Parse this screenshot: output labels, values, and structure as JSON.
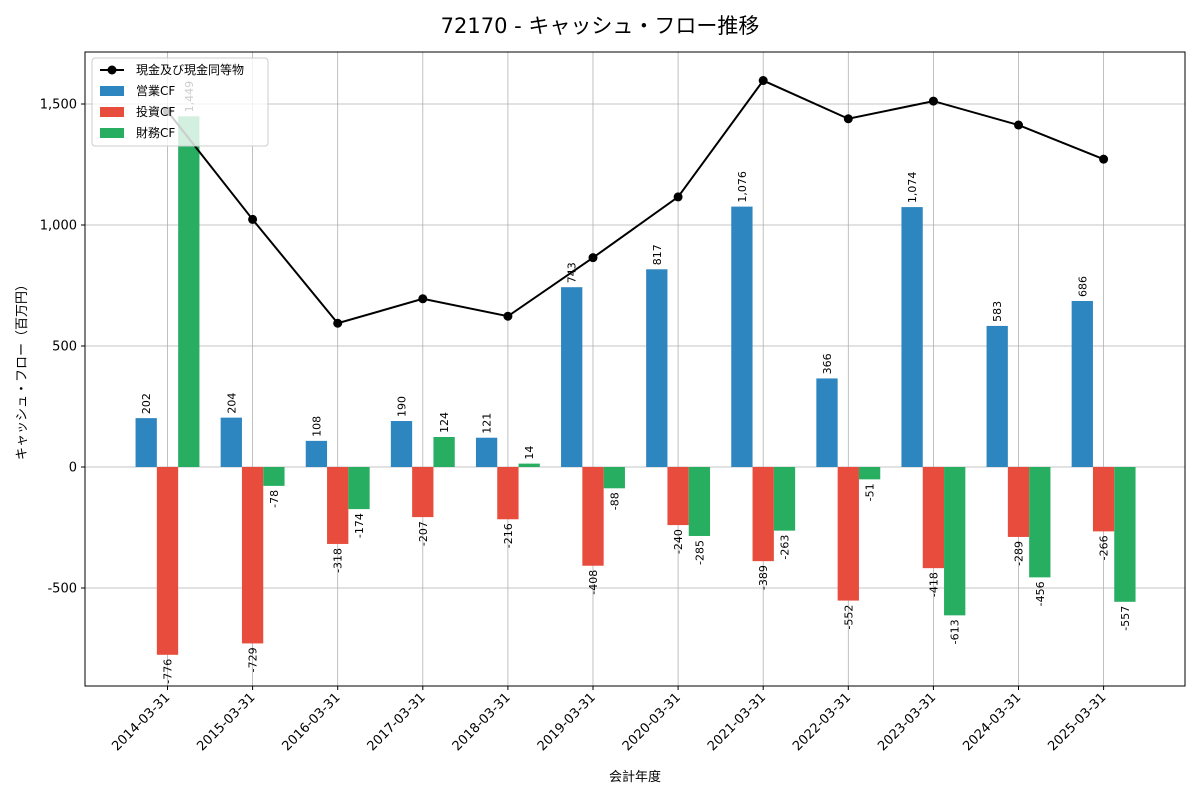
{
  "chart_data": {
    "type": "bar",
    "title": "72170 - キャッシュ・フロー推移",
    "xlabel": "会計年度",
    "ylabel": "キャッシュ・フロー（百万円）",
    "ylim": [
      -900,
      1700
    ],
    "yticks": [
      -500,
      0,
      500,
      1000,
      1500
    ],
    "ytick_labels": [
      "-500",
      "0",
      "500",
      "1,000",
      "1,500"
    ],
    "grid": true,
    "legend_position": "top-left",
    "categories": [
      "2014-03-31",
      "2015-03-31",
      "2016-03-31",
      "2017-03-31",
      "2018-03-31",
      "2019-03-31",
      "2020-03-31",
      "2021-03-31",
      "2022-03-31",
      "2023-03-31",
      "2024-03-31",
      "2025-03-31"
    ],
    "series": [
      {
        "name": "営業CF",
        "kind": "bar",
        "color": "#2e86c1",
        "values": [
          202,
          204,
          108,
          190,
          121,
          743,
          817,
          1076,
          366,
          1074,
          583,
          686
        ],
        "labels": [
          "202",
          "204",
          "108",
          "190",
          "121",
          "743",
          "817",
          "1,076",
          "366",
          "1,074",
          "583",
          "686"
        ]
      },
      {
        "name": "投資CF",
        "kind": "bar",
        "color": "#e74c3c",
        "values": [
          -776,
          -729,
          -318,
          -207,
          -216,
          -408,
          -240,
          -389,
          -552,
          -418,
          -289,
          -266
        ],
        "labels": [
          "-776",
          "-729",
          "-318",
          "-207",
          "-216",
          "-408",
          "-240",
          "-389",
          "-552",
          "-418",
          "-289",
          "-266"
        ]
      },
      {
        "name": "財務CF",
        "kind": "bar",
        "color": "#27ae60",
        "values": [
          1449,
          -78,
          -174,
          124,
          14,
          -88,
          -285,
          -263,
          -51,
          -613,
          -456,
          -557
        ],
        "labels": [
          "1,449",
          "-78",
          "-174",
          "124",
          "14",
          "-88",
          "-285",
          "-263",
          "-51",
          "-613",
          "-456",
          "-557"
        ]
      },
      {
        "name": "現金及び現金同等物",
        "kind": "line",
        "color": "#000000",
        "values": [
          1470,
          1023,
          594,
          695,
          623,
          865,
          1116,
          1597,
          1439,
          1512,
          1413,
          1272
        ]
      }
    ]
  }
}
